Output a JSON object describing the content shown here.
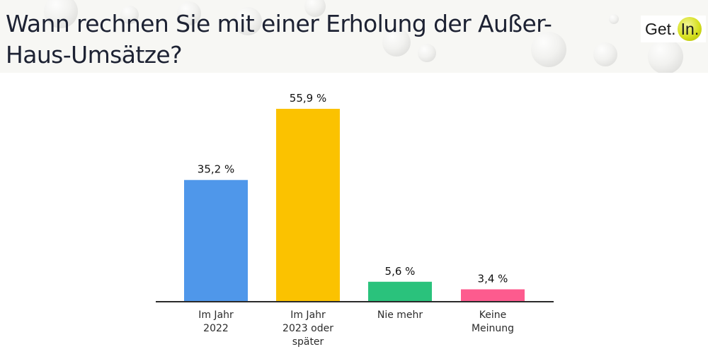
{
  "header": {
    "title": "Wann rechnen Sie mit einer Erholung der Außer-Haus-Umsätze?",
    "title_line1": "Wann rechnen Sie mit einer Erholung der Außer-",
    "title_line2": "Haus-Umsätze?",
    "logo": {
      "text": "Get.",
      "badge": "In."
    }
  },
  "colors": {
    "blue": "#4f97ea",
    "yellow": "#fbc200",
    "green": "#2ac27c",
    "pink": "#fd5b8e",
    "axis": "#2a2a2a",
    "title": "#1d2233",
    "logo_accent": "#d6e020"
  },
  "chart_data": {
    "type": "bar",
    "title": "Wann rechnen Sie mit einer Erholung der Außer-Haus-Umsätze?",
    "xlabel": "",
    "ylabel": "",
    "ylim": [
      0,
      55.9
    ],
    "grid": false,
    "legend": "none",
    "unit": "%",
    "categories": [
      "Im Jahr 2022",
      "Im Jahr 2023 oder später",
      "Nie mehr",
      "Keine Meinung"
    ],
    "category_lines": [
      [
        "Im Jahr",
        "2022"
      ],
      [
        "Im Jahr",
        "2023 oder",
        "später"
      ],
      [
        "Nie mehr"
      ],
      [
        "Keine",
        "Meinung"
      ]
    ],
    "values": [
      35.2,
      55.9,
      5.6,
      3.4
    ],
    "data_labels": [
      "35,2 %",
      "55,9 %",
      "5,6 %",
      "3,4 %"
    ],
    "bar_colors": [
      "#4f97ea",
      "#fbc200",
      "#2ac27c",
      "#fd5b8e"
    ]
  }
}
